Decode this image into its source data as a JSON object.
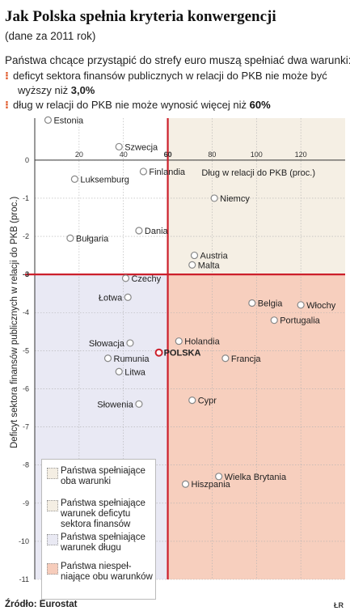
{
  "header": {
    "title": "Jak Polska spełnia kryteria konwergencji",
    "subtitle": "(dane za 2011 rok)",
    "intro": "Państwa chcące przystąpić do strefy euro muszą spełniać dwa warunki:",
    "bullet1_line1": "deficyt sektora finansów publicznych w relacji do PKB nie może być",
    "bullet1_line2_pre": "wyższy niż ",
    "bullet1_value": "3,0%",
    "bullet2_pre": "dług w relacji do PKB nie może wynosić więcej niż ",
    "bullet2_value": "60%"
  },
  "footer": {
    "source": "Źródło: Eurostat",
    "author": "ŁR"
  },
  "chart_data": {
    "type": "scatter",
    "xlabel": "Dług w relacji do PKB (proc.)",
    "ylabel": "Deficyt sektora finansów publicznych w relacji do PKB (proc.)",
    "xlim": [
      0,
      140
    ],
    "ylim": [
      -11,
      1.1
    ],
    "x_ticks": [
      20,
      40,
      60,
      80,
      100,
      120
    ],
    "x_tick_labels": [
      "20",
      "40",
      "60",
      "80",
      "100",
      "120"
    ],
    "y_ticks": [
      0,
      -1,
      -2,
      -3,
      -4,
      -5,
      -6,
      -7,
      -8,
      -9,
      -10,
      -11
    ],
    "y_tick_labels": [
      "0",
      "-1",
      "-2",
      "-3",
      "-4",
      "-5",
      "-6",
      "-7",
      "-8",
      "-9",
      "-10",
      "-11"
    ],
    "threshold_x": 60,
    "threshold_x_label": "60",
    "threshold_y": -3,
    "threshold_y_label": "-3",
    "highlight_label": "POLSKA",
    "points": [
      {
        "name": "Estonia",
        "x": 6,
        "y": 1.05
      },
      {
        "name": "Szwecja",
        "x": 38,
        "y": 0.35
      },
      {
        "name": "Luksemburg",
        "x": 18,
        "y": -0.5
      },
      {
        "name": "Finlandia",
        "x": 49,
        "y": -0.3
      },
      {
        "name": "Niemcy",
        "x": 81,
        "y": -1.0
      },
      {
        "name": "Dania",
        "x": 47,
        "y": -1.85
      },
      {
        "name": "Bułgaria",
        "x": 16,
        "y": -2.05
      },
      {
        "name": "Austria",
        "x": 72,
        "y": -2.5
      },
      {
        "name": "Malta",
        "x": 71,
        "y": -2.75
      },
      {
        "name": "Czechy",
        "x": 41,
        "y": -3.1
      },
      {
        "name": "Łotwa",
        "x": 42,
        "y": -3.6
      },
      {
        "name": "Belgia",
        "x": 98,
        "y": -3.75
      },
      {
        "name": "Włochy",
        "x": 120,
        "y": -3.8
      },
      {
        "name": "Portugalia",
        "x": 108,
        "y": -4.2
      },
      {
        "name": "Holandia",
        "x": 65,
        "y": -4.75
      },
      {
        "name": "Słowacja",
        "x": 43,
        "y": -4.8
      },
      {
        "name": "Polska",
        "x": 56,
        "y": -5.05,
        "highlight": true
      },
      {
        "name": "Rumunia",
        "x": 33,
        "y": -5.2
      },
      {
        "name": "Francja",
        "x": 86,
        "y": -5.2
      },
      {
        "name": "Litwa",
        "x": 38,
        "y": -5.55
      },
      {
        "name": "Cypr",
        "x": 71,
        "y": -6.3
      },
      {
        "name": "Słowenia",
        "x": 47,
        "y": -6.4
      },
      {
        "name": "Wielka Brytania",
        "x": 83,
        "y": -8.3
      },
      {
        "name": "Hiszpania",
        "x": 68,
        "y": -8.5
      }
    ],
    "legend": [
      {
        "label": "Państwa spełniające oba warunki",
        "color": "#f4eee3"
      },
      {
        "label": "Państwa spełniające warunek deficytu sektora finansów",
        "color": "#f4eee3"
      },
      {
        "label": "Państwa spełniające warunek długu",
        "color": "#e9e9f3"
      },
      {
        "label": "Państwa niespeł-niające obu warunków",
        "color": "#f6ccbb"
      }
    ],
    "colors": {
      "both": "#f5efe4",
      "debt_only": "#e9e9f4",
      "neither": "#f7cfbe",
      "threshold": "#cc1f2b",
      "point_fill": "#ffffff",
      "point_stroke": "#888888"
    }
  }
}
